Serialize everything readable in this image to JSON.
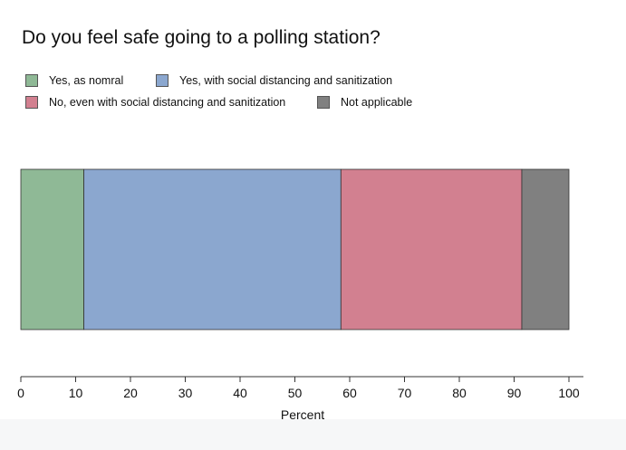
{
  "chart_data": {
    "type": "bar",
    "orientation": "horizontal",
    "stacked": true,
    "title": "Do you feel safe going to a polling station?",
    "xlabel": "Percent",
    "ylabel": "",
    "xlim": [
      0,
      100
    ],
    "xticks": [
      0,
      10,
      20,
      30,
      40,
      50,
      60,
      70,
      80,
      90,
      100
    ],
    "grid": false,
    "legend_position": "top-left",
    "series": [
      {
        "name": "Yes, as nomral",
        "value": 11.5,
        "color": "#8fb996"
      },
      {
        "name": "Yes, with social distancing and sanitization",
        "value": 46.9,
        "color": "#8ba7cf"
      },
      {
        "name": "No, even with social distancing and sanitization",
        "value": 33.0,
        "color": "#d28090"
      },
      {
        "name": "Not applicable",
        "value": 8.6,
        "color": "#808080"
      }
    ]
  }
}
